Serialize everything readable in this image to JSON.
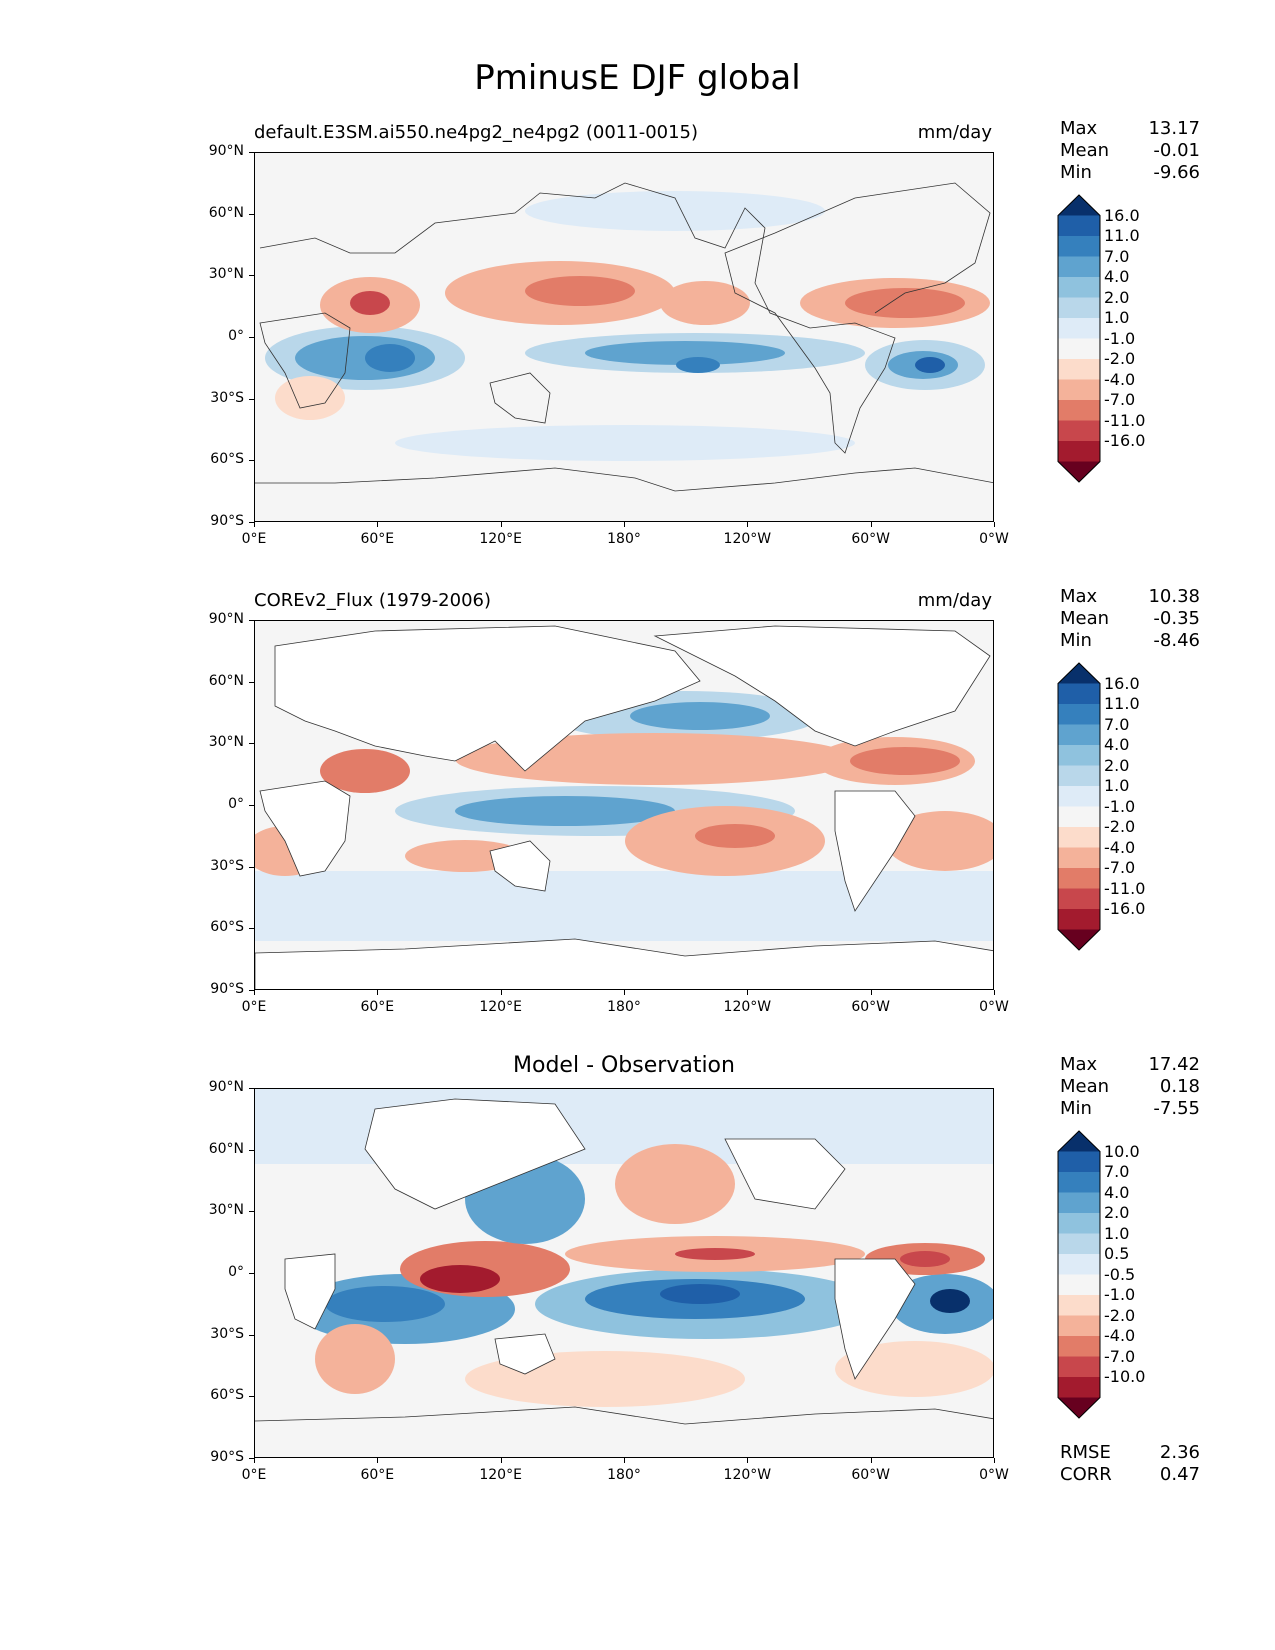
{
  "title": "PminusE DJF global",
  "lon_ticks": [
    "0°E",
    "60°E",
    "120°E",
    "180°",
    "120°W",
    "60°W",
    "0°W"
  ],
  "lat_ticks": [
    "90°N",
    "60°N",
    "30°N",
    "0°",
    "30°S",
    "60°S",
    "90°S"
  ],
  "colors": {
    "pos": [
      "#f5f5f5",
      "#deebf7",
      "#b9d7ea",
      "#8fc2de",
      "#5fa3cf",
      "#3580bd",
      "#1f5fa8",
      "#08306b"
    ],
    "neg": [
      "#f5f5f5",
      "#fcdccb",
      "#f4b29a",
      "#e27c68",
      "#c8474c",
      "#a31b2e",
      "#67001f"
    ]
  },
  "panels": [
    {
      "subtitle": "default.E3SM.ai550.ne4pg2_ne4pg2 (0011-0015)",
      "units": "mm/day",
      "stats": {
        "max_label": "Max",
        "max": "13.17",
        "mean_label": "Mean",
        "mean": "-0.01",
        "min_label": "Min",
        "min": "-9.66"
      },
      "levels": [
        "16.0",
        "11.0",
        "7.0",
        "4.0",
        "2.0",
        "1.0",
        "-1.0",
        "-2.0",
        "-4.0",
        "-7.0",
        "-11.0",
        "-16.0"
      ]
    },
    {
      "subtitle": "COREv2_Flux (1979-2006)",
      "units": "mm/day",
      "stats": {
        "max_label": "Max",
        "max": "10.38",
        "mean_label": "Mean",
        "mean": "-0.35",
        "min_label": "Min",
        "min": "-8.46"
      },
      "levels": [
        "16.0",
        "11.0",
        "7.0",
        "4.0",
        "2.0",
        "1.0",
        "-1.0",
        "-2.0",
        "-4.0",
        "-7.0",
        "-11.0",
        "-16.0"
      ]
    },
    {
      "subtitle": "Model - Observation",
      "units": "",
      "stats": {
        "max_label": "Max",
        "max": "17.42",
        "mean_label": "Mean",
        "mean": "0.18",
        "min_label": "Min",
        "min": "-7.55"
      },
      "levels": [
        "10.0",
        "7.0",
        "4.0",
        "2.0",
        "1.0",
        "0.5",
        "-0.5",
        "-1.0",
        "-2.0",
        "-4.0",
        "-7.0",
        "-10.0"
      ],
      "metrics": {
        "rmse_label": "RMSE",
        "rmse": "2.36",
        "corr_label": "CORR",
        "corr": "0.47"
      }
    }
  ]
}
